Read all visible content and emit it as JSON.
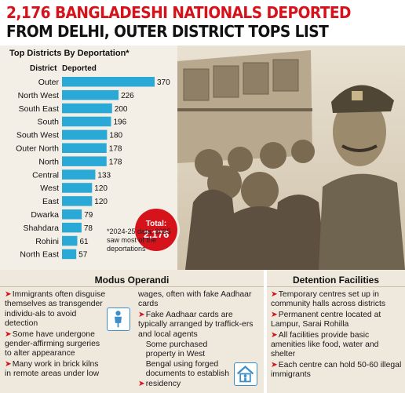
{
  "headline": {
    "line1": "2,176 BANGLADESHI NATIONALS DEPORTED",
    "line2": "FROM DELHI, OUTER DISTRICT TOPS LIST"
  },
  "chart_data": {
    "type": "bar",
    "title": "Top Districts By Deportation*",
    "category_header": "District",
    "value_header": "Deported",
    "categories": [
      "Outer",
      "North West",
      "South East",
      "South",
      "South West",
      "Outer North",
      "North",
      "Central",
      "West",
      "East",
      "Dwarka",
      "Shahdara",
      "Rohini",
      "North East"
    ],
    "values": [
      370,
      226,
      200,
      196,
      180,
      178,
      178,
      133,
      120,
      120,
      79,
      78,
      61,
      57
    ],
    "xlim": [
      0,
      370
    ],
    "orientation": "horizontal",
    "bar_color": "#2aa8d6",
    "grid": false
  },
  "total": {
    "label": "Total:",
    "value": "2,176"
  },
  "note": "*2024-25 data; 2025 saw most of the deportations",
  "modus": {
    "title": "Modus Operandi",
    "col1": [
      "Immigrants often disguise themselves as transgender individu-als to avoid detection",
      "Some have undergone gender-affirming surgeries to alter appearance",
      "Many work in brick kilns in remote areas under low"
    ],
    "col2": [
      "wages, often with fake Aadhaar cards",
      "Fake Aadhaar cards are typically arranged by traffick-ers and local agents",
      "Some purchased property in West Bengal using forged documents to establish residency"
    ]
  },
  "detention": {
    "title": "Detention Facilities",
    "items": [
      "Temporary centres set up in community halls across districts",
      "Permanent centre located at Lampur, Sarai Rohilla",
      "All facilities provide basic amenities like food, water and shelter",
      "Each centre can hold 50-60 illegal immigrants"
    ]
  },
  "colors": {
    "accent": "#d6121b",
    "bar": "#2aa8d6",
    "panel": "#efe8dc"
  }
}
